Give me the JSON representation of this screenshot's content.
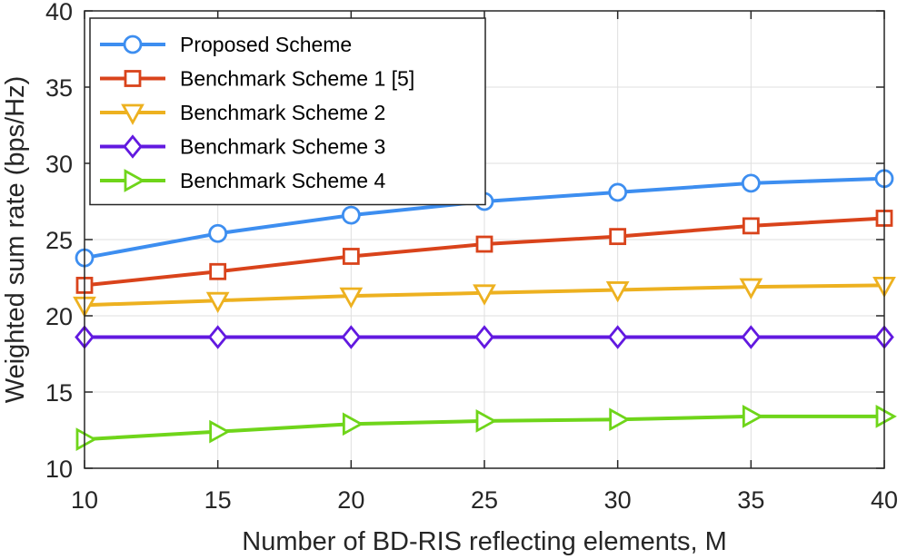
{
  "chart_data": {
    "type": "line",
    "title": "",
    "xlabel": "Number of BD-RIS reflecting elements, M",
    "ylabel": "Weighted sum rate (bps/Hz)",
    "x": [
      10,
      15,
      20,
      25,
      30,
      35,
      40
    ],
    "xlim": [
      10,
      40
    ],
    "ylim": [
      10,
      40
    ],
    "xticks": [
      "10",
      "15",
      "20",
      "25",
      "30",
      "35",
      "40"
    ],
    "yticks": [
      "10",
      "15",
      "20",
      "25",
      "30",
      "35",
      "40"
    ],
    "grid": true,
    "legend_position": "top-left",
    "series": [
      {
        "name": "Proposed Scheme",
        "marker": "circle",
        "color": "#3d8ef0",
        "values": [
          23.8,
          25.4,
          26.6,
          27.5,
          28.1,
          28.7,
          29.0
        ]
      },
      {
        "name": "Benchmark Scheme 1 [5]",
        "marker": "square",
        "color": "#d9431b",
        "values": [
          22.0,
          22.9,
          23.9,
          24.7,
          25.2,
          25.9,
          26.4
        ]
      },
      {
        "name": "Benchmark Scheme 2",
        "marker": "triangle-down",
        "color": "#edb120",
        "values": [
          20.7,
          21.0,
          21.3,
          21.5,
          21.7,
          21.9,
          22.0
        ]
      },
      {
        "name": "Benchmark Scheme 3",
        "marker": "diamond",
        "color": "#6219e0",
        "values": [
          18.6,
          18.6,
          18.6,
          18.6,
          18.6,
          18.6,
          18.6
        ]
      },
      {
        "name": "Benchmark Scheme 4",
        "marker": "triangle-right",
        "color": "#6fd51a",
        "values": [
          11.9,
          12.4,
          12.9,
          13.1,
          13.2,
          13.4,
          13.4
        ]
      }
    ]
  }
}
